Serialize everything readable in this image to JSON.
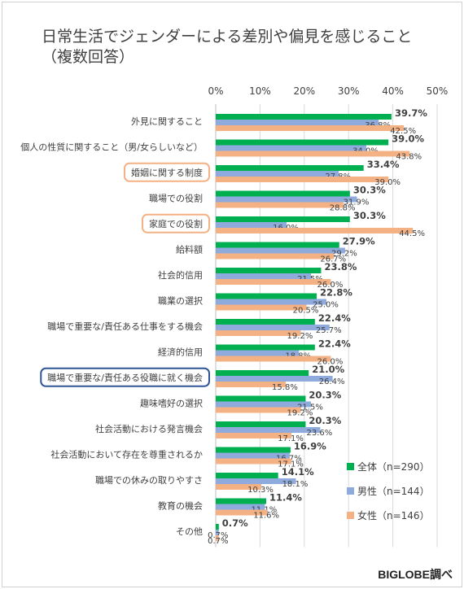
{
  "title_line1": "日常生活でジェンダーによる差別や偏見を感じること",
  "title_line2": "（複数回答）",
  "source": "BIGLOBE調べ",
  "colors": {
    "all": "#00b050",
    "male": "#8faadc",
    "female": "#f4b183",
    "frame_orange": "#f4b183",
    "frame_blue": "#2f5597"
  },
  "highlight": {
    "orange": [
      "婚姻に関する制度",
      "家庭での役割"
    ],
    "blue": [
      "職場で重要な/責任ある役職に就く機会"
    ]
  },
  "chart_data": {
    "type": "bar",
    "orientation": "horizontal",
    "xlim": [
      0,
      50
    ],
    "ticks": [
      "0%",
      "10%",
      "20%",
      "30%",
      "40%",
      "50%"
    ],
    "grid": true,
    "legend_position": "bottom-right",
    "categories": [
      "外見に関すること",
      "個人の性質に関すること（男/女らしいなど）",
      "婚姻に関する制度",
      "職場での役割",
      "家庭での役割",
      "給料額",
      "社会的信用",
      "職業の選択",
      "職場で重要な/責任ある仕事をする機会",
      "経済的信用",
      "職場で重要な/責任ある役職に就く機会",
      "趣味嗜好の選択",
      "社会活動における発言機会",
      "社会活動において存在を尊重されるか",
      "職場での休みの取りやすさ",
      "教育の機会",
      "その他"
    ],
    "series": [
      {
        "name": "全体（n=290）",
        "values": [
          39.7,
          39.0,
          33.4,
          30.3,
          30.3,
          27.9,
          23.8,
          22.8,
          22.4,
          22.4,
          21.0,
          20.3,
          20.3,
          16.9,
          14.1,
          11.4,
          0.7
        ],
        "labels": [
          "39.7%",
          "39.0%",
          "33.4%",
          "30.3%",
          "30.3%",
          "27.9%",
          "23.8%",
          "22.8%",
          "22.4%",
          "22.4%",
          "21.0%",
          "20.3%",
          "20.3%",
          "16.9%",
          "14.1%",
          "11.4%",
          "0.7%"
        ]
      },
      {
        "name": "男性（n=144）",
        "values": [
          36.8,
          34.0,
          27.8,
          31.9,
          16.0,
          29.2,
          21.5,
          25.0,
          25.7,
          18.8,
          26.4,
          21.5,
          23.6,
          16.7,
          18.1,
          11.1,
          0.7
        ],
        "labels": [
          "36.8%",
          "34.0%",
          "27.8%",
          "31.9%",
          "16.0%",
          "29.2%",
          "21.5%",
          "25.0%",
          "25.7%",
          "18.8%",
          "26.4%",
          "21.5%",
          "23.6%",
          "16.7%",
          "18.1%",
          "11.1%",
          "0.7%"
        ]
      },
      {
        "name": "女性（n=146）",
        "values": [
          42.5,
          43.8,
          39.0,
          28.8,
          44.5,
          26.7,
          26.0,
          20.5,
          19.2,
          26.0,
          15.8,
          19.2,
          17.1,
          17.1,
          10.3,
          11.6,
          0.7
        ],
        "labels": [
          "42.5%",
          "43.8%",
          "39.0%",
          "28.8%",
          "44.5%",
          "26.7%",
          "26.0%",
          "20.5%",
          "19.2%",
          "26.0%",
          "15.8%",
          "19.2%",
          "17.1%",
          "17.1%",
          "10.3%",
          "11.6%",
          "0.7%"
        ]
      }
    ]
  }
}
